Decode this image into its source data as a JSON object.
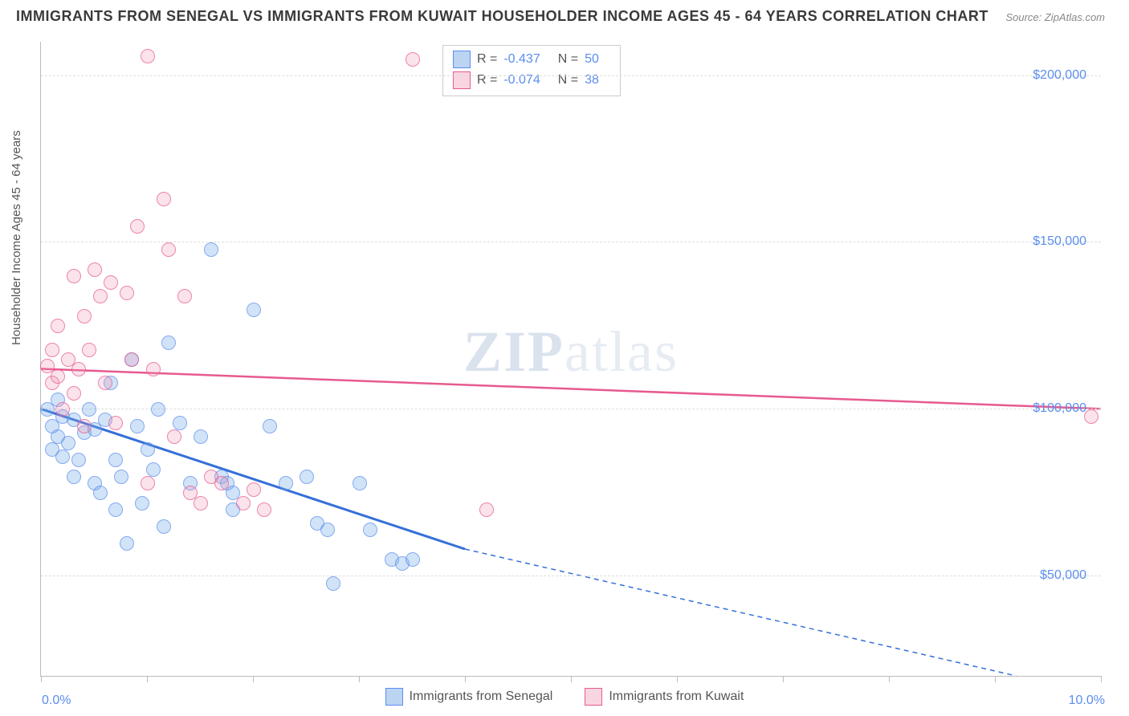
{
  "title": "IMMIGRANTS FROM SENEGAL VS IMMIGRANTS FROM KUWAIT HOUSEHOLDER INCOME AGES 45 - 64 YEARS CORRELATION CHART",
  "source": "Source: ZipAtlas.com",
  "watermark": "ZIPatlas",
  "ylabel": "Householder Income Ages 45 - 64 years",
  "chart": {
    "type": "scatter",
    "xlim": [
      0,
      10
    ],
    "ylim": [
      20000,
      210000
    ],
    "x_ticks": [
      0,
      1,
      2,
      3,
      4,
      5,
      6,
      7,
      8,
      9,
      10
    ],
    "x_tick_labels": {
      "0": "0.0%",
      "10": "10.0%"
    },
    "y_ticks": [
      50000,
      100000,
      150000,
      200000
    ],
    "y_tick_labels": [
      "$50,000",
      "$100,000",
      "$150,000",
      "$200,000"
    ],
    "grid_color": "#dddddd",
    "axis_color": "#bbbbbb",
    "background_color": "#ffffff",
    "label_color": "#5b8def",
    "text_color": "#555555",
    "title_fontsize": 18,
    "label_fontsize": 15,
    "tick_fontsize": 16,
    "marker_size": 16
  },
  "series": [
    {
      "name": "Immigrants from Senegal",
      "key": "s1",
      "fill_color": "rgba(120,170,230,0.45)",
      "stroke_color": "#5b8def",
      "line_color": "#3570d8",
      "r": "-0.437",
      "n": "50",
      "trend": {
        "x1": 0,
        "y1": 100000,
        "x2": 4,
        "y2": 58000,
        "dash_to_x": 9.2,
        "dash_to_y": 0
      },
      "points": [
        [
          0.05,
          100000
        ],
        [
          0.1,
          95000
        ],
        [
          0.1,
          88000
        ],
        [
          0.15,
          92000
        ],
        [
          0.15,
          103000
        ],
        [
          0.2,
          98000
        ],
        [
          0.2,
          86000
        ],
        [
          0.25,
          90000
        ],
        [
          0.3,
          97000
        ],
        [
          0.3,
          80000
        ],
        [
          0.35,
          85000
        ],
        [
          0.4,
          93000
        ],
        [
          0.45,
          100000
        ],
        [
          0.5,
          94000
        ],
        [
          0.5,
          78000
        ],
        [
          0.55,
          75000
        ],
        [
          0.6,
          97000
        ],
        [
          0.65,
          108000
        ],
        [
          0.7,
          85000
        ],
        [
          0.7,
          70000
        ],
        [
          0.75,
          80000
        ],
        [
          0.8,
          60000
        ],
        [
          0.85,
          115000
        ],
        [
          0.9,
          95000
        ],
        [
          0.95,
          72000
        ],
        [
          1.0,
          88000
        ],
        [
          1.05,
          82000
        ],
        [
          1.1,
          100000
        ],
        [
          1.15,
          65000
        ],
        [
          1.2,
          120000
        ],
        [
          1.3,
          96000
        ],
        [
          1.4,
          78000
        ],
        [
          1.5,
          92000
        ],
        [
          1.6,
          148000
        ],
        [
          1.7,
          80000
        ],
        [
          1.75,
          78000
        ],
        [
          1.8,
          75000
        ],
        [
          1.8,
          70000
        ],
        [
          2.0,
          130000
        ],
        [
          2.15,
          95000
        ],
        [
          2.3,
          78000
        ],
        [
          2.5,
          80000
        ],
        [
          2.6,
          66000
        ],
        [
          2.7,
          64000
        ],
        [
          2.75,
          48000
        ],
        [
          3.0,
          78000
        ],
        [
          3.1,
          64000
        ],
        [
          3.3,
          55000
        ],
        [
          3.4,
          54000
        ],
        [
          3.5,
          55000
        ]
      ]
    },
    {
      "name": "Immigrants from Kuwait",
      "key": "s2",
      "fill_color": "rgba(240,150,180,0.35)",
      "stroke_color": "#e75a8f",
      "line_color": "#e75a8f",
      "r": "-0.074",
      "n": "38",
      "trend": {
        "x1": 0,
        "y1": 112000,
        "x2": 10,
        "y2": 100000
      },
      "points": [
        [
          0.05,
          113000
        ],
        [
          0.1,
          118000
        ],
        [
          0.1,
          108000
        ],
        [
          0.15,
          110000
        ],
        [
          0.15,
          125000
        ],
        [
          0.2,
          100000
        ],
        [
          0.25,
          115000
        ],
        [
          0.3,
          140000
        ],
        [
          0.3,
          105000
        ],
        [
          0.35,
          112000
        ],
        [
          0.4,
          128000
        ],
        [
          0.4,
          95000
        ],
        [
          0.45,
          118000
        ],
        [
          0.5,
          142000
        ],
        [
          0.55,
          134000
        ],
        [
          0.6,
          108000
        ],
        [
          0.65,
          138000
        ],
        [
          0.7,
          96000
        ],
        [
          0.8,
          135000
        ],
        [
          0.85,
          115000
        ],
        [
          0.9,
          155000
        ],
        [
          1.0,
          206000
        ],
        [
          1.0,
          78000
        ],
        [
          1.05,
          112000
        ],
        [
          1.15,
          163000
        ],
        [
          1.2,
          148000
        ],
        [
          1.25,
          92000
        ],
        [
          1.35,
          134000
        ],
        [
          1.4,
          75000
        ],
        [
          1.5,
          72000
        ],
        [
          1.6,
          80000
        ],
        [
          1.7,
          78000
        ],
        [
          1.9,
          72000
        ],
        [
          2.0,
          76000
        ],
        [
          2.1,
          70000
        ],
        [
          3.5,
          205000
        ],
        [
          4.2,
          70000
        ],
        [
          9.9,
          98000
        ]
      ]
    }
  ],
  "legend_bottom": [
    {
      "swatch": "blue",
      "label": "Immigrants from Senegal"
    },
    {
      "swatch": "pink",
      "label": "Immigrants from Kuwait"
    }
  ],
  "legend_box": [
    {
      "swatch": "blue",
      "r_label": "R =",
      "r": "-0.437",
      "n_label": "N =",
      "n": "50"
    },
    {
      "swatch": "pink",
      "r_label": "R =",
      "r": "-0.074",
      "n_label": "N =",
      "n": "38"
    }
  ]
}
